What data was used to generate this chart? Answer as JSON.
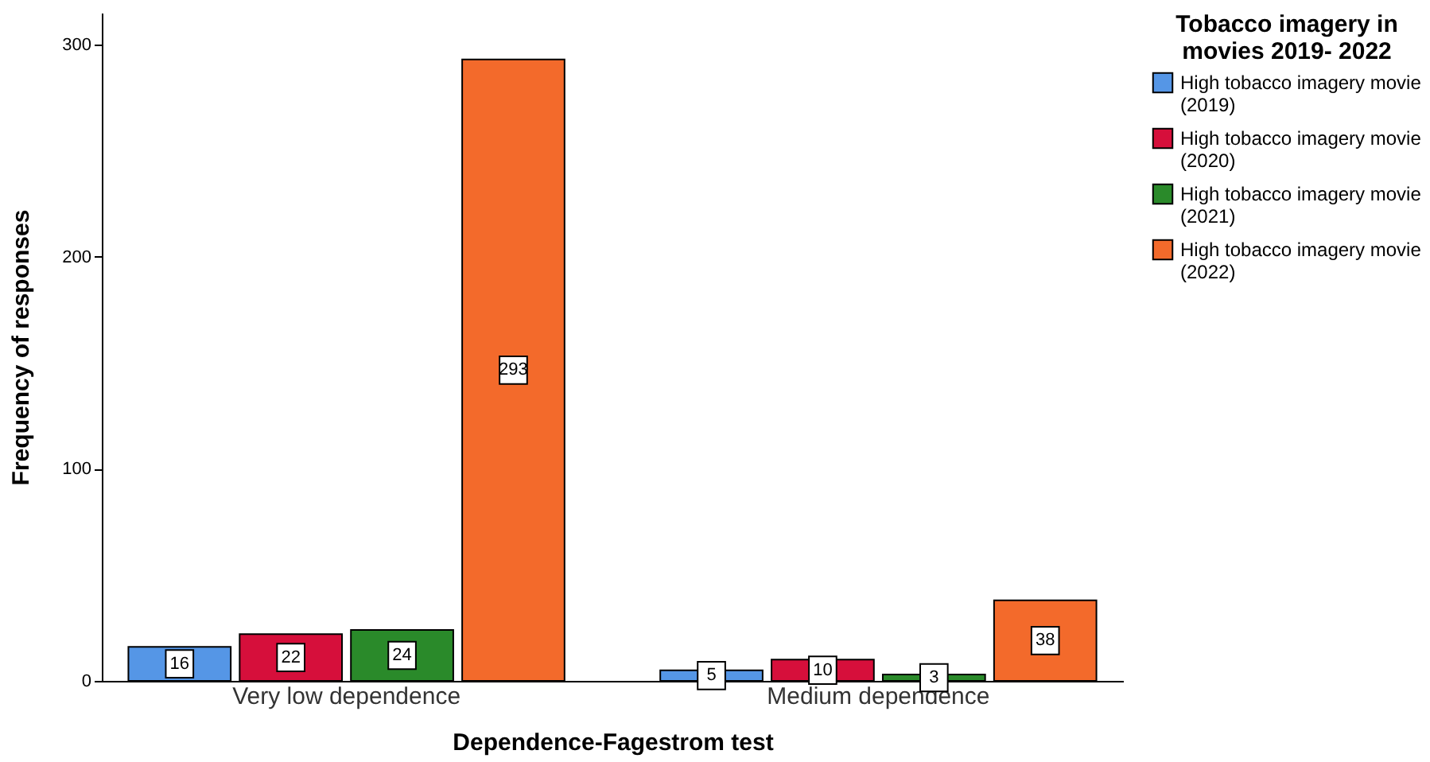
{
  "chart_data": {
    "type": "bar",
    "xlabel": "Dependence-Fagestrom test",
    "ylabel": "Frequency of responses",
    "legend_title": "Tobacco imagery in movies 2019- 2022",
    "categories": [
      "Very low dependence",
      "Medium dependence"
    ],
    "series": [
      {
        "name": "High tobacco imagery movie (2019)",
        "color": "#5596e6",
        "values": [
          16,
          5
        ]
      },
      {
        "name": "High tobacco imagery movie (2020)",
        "color": "#d60f3b",
        "values": [
          22,
          10
        ]
      },
      {
        "name": "High tobacco imagery movie (2021)",
        "color": "#2a8a2a",
        "values": [
          24,
          3
        ]
      },
      {
        "name": "High tobacco imagery movie (2022)",
        "color": "#f36a2b",
        "values": [
          293,
          38
        ]
      }
    ],
    "ylim": [
      0,
      315
    ],
    "yticks": [
      0,
      100,
      200,
      300
    ],
    "grid": false,
    "legend": "top right",
    "data_labels": true
  }
}
